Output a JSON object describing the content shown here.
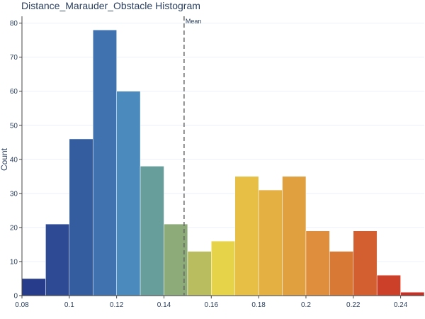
{
  "chart_data": {
    "type": "bar",
    "title": "Distance_Marauder_Obstacle Histogram",
    "xlabel": "",
    "ylabel": "Count",
    "xlim": [
      0.08,
      0.25
    ],
    "ylim": [
      0,
      82
    ],
    "bin_width": 0.01,
    "bins": [
      {
        "start": 0.08,
        "end": 0.09,
        "value": 5,
        "color": "#283c8c"
      },
      {
        "start": 0.09,
        "end": 0.1,
        "value": 21,
        "color": "#2e4a95"
      },
      {
        "start": 0.1,
        "end": 0.11,
        "value": 46,
        "color": "#345d9f"
      },
      {
        "start": 0.11,
        "end": 0.12,
        "value": 78,
        "color": "#3f72ae"
      },
      {
        "start": 0.12,
        "end": 0.13,
        "value": 60,
        "color": "#4b8abd"
      },
      {
        "start": 0.13,
        "end": 0.14,
        "value": 38,
        "color": "#679d9a"
      },
      {
        "start": 0.14,
        "end": 0.15,
        "value": 21,
        "color": "#8dab78"
      },
      {
        "start": 0.15,
        "end": 0.16,
        "value": 13,
        "color": "#babd5f"
      },
      {
        "start": 0.16,
        "end": 0.17,
        "value": 16,
        "color": "#e6d34a"
      },
      {
        "start": 0.17,
        "end": 0.18,
        "value": 35,
        "color": "#e6bf44"
      },
      {
        "start": 0.18,
        "end": 0.19,
        "value": 31,
        "color": "#e4b042"
      },
      {
        "start": 0.19,
        "end": 0.2,
        "value": 35,
        "color": "#e0a040"
      },
      {
        "start": 0.2,
        "end": 0.21,
        "value": 19,
        "color": "#de8e3c"
      },
      {
        "start": 0.21,
        "end": 0.22,
        "value": 13,
        "color": "#d87936"
      },
      {
        "start": 0.22,
        "end": 0.23,
        "value": 19,
        "color": "#d35f30"
      },
      {
        "start": 0.23,
        "end": 0.24,
        "value": 6,
        "color": "#cc4029"
      },
      {
        "start": 0.24,
        "end": 0.25,
        "value": 1,
        "color": "#c33026"
      }
    ],
    "x_ticks": [
      {
        "value": 0.08,
        "label": "0.08"
      },
      {
        "value": 0.1,
        "label": "0.1"
      },
      {
        "value": 0.12,
        "label": "0.12"
      },
      {
        "value": 0.14,
        "label": "0.14"
      },
      {
        "value": 0.16,
        "label": "0.16"
      },
      {
        "value": 0.18,
        "label": "0.18"
      },
      {
        "value": 0.2,
        "label": "0.2"
      },
      {
        "value": 0.22,
        "label": "0.22"
      },
      {
        "value": 0.24,
        "label": "0.24"
      }
    ],
    "y_ticks": [
      {
        "value": 0,
        "label": "0"
      },
      {
        "value": 10,
        "label": "10"
      },
      {
        "value": 20,
        "label": "20"
      },
      {
        "value": 30,
        "label": "30"
      },
      {
        "value": 40,
        "label": "40"
      },
      {
        "value": 50,
        "label": "50"
      },
      {
        "value": 60,
        "label": "60"
      },
      {
        "value": 70,
        "label": "70"
      },
      {
        "value": 80,
        "label": "80"
      }
    ],
    "mean_line": {
      "x": 0.1485,
      "label": "Mean",
      "color": "#666666",
      "style": "dashed"
    },
    "grid": true,
    "legend": "none"
  }
}
